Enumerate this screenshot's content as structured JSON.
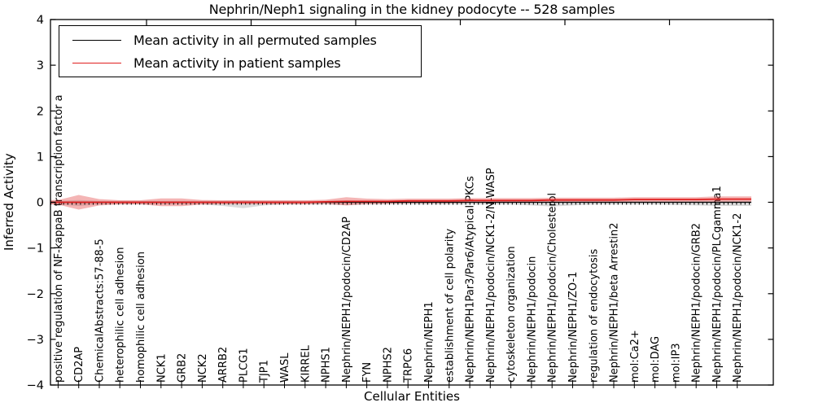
{
  "page": {
    "background": "#ffffff"
  },
  "chart_data": {
    "type": "line",
    "title": "Nephrin/Neph1 signaling in the kidney podocyte -- 528 samples",
    "xlabel": "Cellular Entities",
    "ylabel": "Inferred Activity",
    "ylim": [
      -4,
      4
    ],
    "ytick_labels": [
      "4",
      "3",
      "2",
      "1",
      "0",
      "−1",
      "−2",
      "−3",
      "−4"
    ],
    "grid": false,
    "legend_position": "upper left",
    "categories": [
      "positive regulation of NF-kappaB transcription factor a",
      "CD2AP",
      "ChemicalAbstracts:57-88-5",
      "heterophilic cell adhesion",
      "homophilic cell adhesion",
      "NCK1",
      "GRB2",
      "NCK2",
      "ARRB2",
      "PLCG1",
      "TJP1",
      "WASL",
      "KIRREL",
      "NPHS1",
      "Nephrin/NEPH1/podocin/CD2AP",
      "FYN",
      "NPHS2",
      "TRPC6",
      "Nephrin/NEPH1",
      "establishment of cell polarity",
      "Nephrin/NEPH1Par3/Par6/Atypical PKCs",
      "Nephrin/NEPH1/podocin/NCK1-2/N-WASP",
      "cytoskeleton organization",
      "Nephrin/NEPH1/podocin",
      "Nephrin/NEPH1/podocin/Cholesterol",
      "Nephrin/NEPH1/ZO-1",
      "regulation of endocytosis",
      "Nephrin/NEPH1/beta Arrestin2",
      "mol:Ca2+",
      "mol:DAG",
      "mol:IP3",
      "Nephrin/NEPH1/podocin/GRB2",
      "Nephrin/NEPH1/podocin/PLCgamma1",
      "Nephrin/NEPH1/podocin/NCK1-2"
    ],
    "series": [
      {
        "name": "Mean activity in all permuted samples",
        "color": "#000000",
        "values": [
          0,
          0,
          0,
          0,
          0,
          0,
          0,
          0,
          0,
          0,
          0,
          0,
          0,
          0,
          0,
          0,
          0,
          0,
          0,
          0,
          0,
          0,
          0,
          0,
          0,
          0,
          0,
          0,
          0,
          0,
          0,
          0,
          0,
          0
        ]
      },
      {
        "name": "Mean activity in patient samples",
        "color": "#e02020",
        "values": [
          0,
          0,
          0,
          0,
          0,
          0,
          0,
          0,
          0,
          0,
          0,
          0,
          0,
          0.01,
          0.02,
          0.02,
          0.02,
          0.03,
          0.03,
          0.03,
          0.04,
          0.04,
          0.04,
          0.04,
          0.05,
          0.05,
          0.05,
          0.05,
          0.06,
          0.06,
          0.06,
          0.06,
          0.07,
          0.07
        ]
      }
    ],
    "bands": {
      "permuted": {
        "color": "rgba(0,0,0,0.14)",
        "upper": [
          0.03,
          0.05,
          0.03,
          0.03,
          0.03,
          0.03,
          0.03,
          0.03,
          0.03,
          0.04,
          0.03,
          0.03,
          0.03,
          0.03,
          0.04,
          0.03,
          0.03,
          0.03,
          0.03,
          0.03,
          0.03,
          0.03,
          0.03,
          0.03,
          0.03,
          0.03,
          0.03,
          0.03,
          0.03,
          0.03,
          0.03,
          0.03,
          0.03,
          0.03
        ],
        "lower": [
          0.05,
          0.08,
          0.05,
          0.05,
          0.05,
          0.05,
          0.05,
          0.05,
          0.08,
          0.13,
          0.07,
          0.05,
          0.05,
          0.05,
          0.06,
          0.05,
          0.05,
          0.05,
          0.05,
          0.05,
          0.05,
          0.05,
          0.05,
          0.07,
          0.09,
          0.07,
          0.05,
          0.05,
          0.05,
          0.05,
          0.06,
          0.07,
          0.08,
          0.08
        ]
      },
      "patient": {
        "color": "rgba(226,60,60,0.38)",
        "half": [
          0.05,
          0.16,
          0.07,
          0.045,
          0.045,
          0.085,
          0.085,
          0.05,
          0.045,
          0.045,
          0.045,
          0.045,
          0.045,
          0.045,
          0.09,
          0.06,
          0.05,
          0.05,
          0.05,
          0.05,
          0.05,
          0.05,
          0.05,
          0.05,
          0.05,
          0.05,
          0.05,
          0.05,
          0.05,
          0.05,
          0.05,
          0.05,
          0.06,
          0.06
        ]
      }
    }
  }
}
